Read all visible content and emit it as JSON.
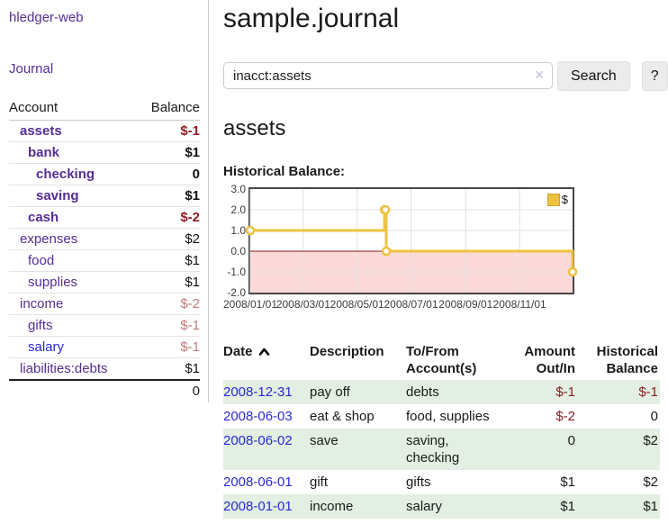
{
  "colors": {
    "link_purple": "#552e91",
    "link_blue": "#2a2ad2",
    "negative_strong": "#8f1d24",
    "negative_soft": "#c07b7b",
    "row_green": "#e2efe2",
    "chart_line_gold": "#edc240",
    "chart_negative_pink": "#fcd9d9",
    "chart_zero_line": "#8b1a1a",
    "chart_grid": "#e0e0e0",
    "chart_border": "#454545"
  },
  "app": {
    "title": "hledger-web"
  },
  "nav": {
    "journal": "Journal"
  },
  "sidebar": {
    "headers": {
      "account": "Account",
      "balance": "Balance"
    },
    "accounts": [
      {
        "name": "assets",
        "indent": 1,
        "bold": true,
        "blue": false,
        "balance": "$-1",
        "balance_style": "neg-strong"
      },
      {
        "name": "bank",
        "indent": 2,
        "bold": true,
        "blue": false,
        "balance": "$1",
        "balance_style": "pos-strong"
      },
      {
        "name": "checking",
        "indent": 3,
        "bold": true,
        "blue": false,
        "balance": "0",
        "balance_style": "pos-strong"
      },
      {
        "name": "saving",
        "indent": 3,
        "bold": true,
        "blue": false,
        "balance": "$1",
        "balance_style": "pos-strong"
      },
      {
        "name": "cash",
        "indent": 2,
        "bold": true,
        "blue": false,
        "balance": "$-2",
        "balance_style": "neg-strong"
      },
      {
        "name": "expenses",
        "indent": 1,
        "bold": false,
        "blue": false,
        "balance": "$2",
        "balance_style": "pos"
      },
      {
        "name": "food",
        "indent": 2,
        "bold": false,
        "blue": false,
        "balance": "$1",
        "balance_style": "pos"
      },
      {
        "name": "supplies",
        "indent": 2,
        "bold": false,
        "blue": false,
        "balance": "$1",
        "balance_style": "pos"
      },
      {
        "name": "income",
        "indent": 1,
        "bold": false,
        "blue": false,
        "balance": "$-2",
        "balance_style": "neg"
      },
      {
        "name": "gifts",
        "indent": 2,
        "bold": false,
        "blue": false,
        "balance": "$-1",
        "balance_style": "neg"
      },
      {
        "name": "salary",
        "indent": 2,
        "bold": false,
        "blue": true,
        "balance": "$-1",
        "balance_style": "neg"
      },
      {
        "name": "liabilities:debts",
        "indent": 1,
        "bold": false,
        "blue": false,
        "balance": "$1",
        "balance_style": "pos"
      }
    ],
    "total": "0"
  },
  "main": {
    "title": "sample.journal"
  },
  "search": {
    "value": "inacct:assets",
    "clear_icon": "✕",
    "search_button": "Search",
    "help_button": "?"
  },
  "account": {
    "title": "assets",
    "chart_label": "Historical Balance:"
  },
  "chart_data": {
    "type": "line",
    "step": true,
    "title": "Historical Balance:",
    "legend": "$",
    "legend_position": "top-right",
    "x": [
      "2008-01-01",
      "2008-06-01",
      "2008-06-02",
      "2008-06-03",
      "2008-12-31"
    ],
    "series": [
      {
        "name": "$",
        "values": [
          1,
          2,
          2,
          0,
          -1
        ]
      }
    ],
    "xlim": [
      "2008-01-01",
      "2008-12-31"
    ],
    "ylim": [
      -2,
      3
    ],
    "yticks": [
      3,
      2,
      1,
      0,
      -1,
      -2
    ],
    "ytick_labels": [
      "3.0",
      "2.0",
      "1.0",
      "0.0",
      "-1.0",
      "-2.0"
    ],
    "xtick_labels": [
      "2008/01/01",
      "2008/03/01",
      "2008/05/01",
      "2008/07/01",
      "2008/09/01",
      "2008/11/01"
    ],
    "grid": true,
    "negative_region_shaded": true
  },
  "register": {
    "headers": {
      "date": "Date",
      "sort_icon": "chevron-up",
      "description": "Description",
      "tofrom": "To/From Account(s)",
      "amount": "Amount Out/In",
      "balance": "Historical Balance"
    },
    "rows": [
      {
        "date": "2008-12-31",
        "description": "pay off",
        "accounts": "debts",
        "amount": "$-1",
        "amount_negative": true,
        "balance": "$-1",
        "balance_negative": true,
        "shaded": true
      },
      {
        "date": "2008-06-03",
        "description": "eat & shop",
        "accounts": "food, supplies",
        "amount": "$-2",
        "amount_negative": true,
        "balance": "0",
        "balance_negative": false,
        "shaded": false
      },
      {
        "date": "2008-06-02",
        "description": "save",
        "accounts": "saving,\nchecking",
        "amount": "0",
        "amount_negative": false,
        "balance": "$2",
        "balance_negative": false,
        "shaded": true
      },
      {
        "date": "2008-06-01",
        "description": "gift",
        "accounts": "gifts",
        "amount": "$1",
        "amount_negative": false,
        "balance": "$2",
        "balance_negative": false,
        "shaded": false
      },
      {
        "date": "2008-01-01",
        "description": "income",
        "accounts": "salary",
        "amount": "$1",
        "amount_negative": false,
        "balance": "$1",
        "balance_negative": false,
        "shaded": true
      }
    ]
  }
}
